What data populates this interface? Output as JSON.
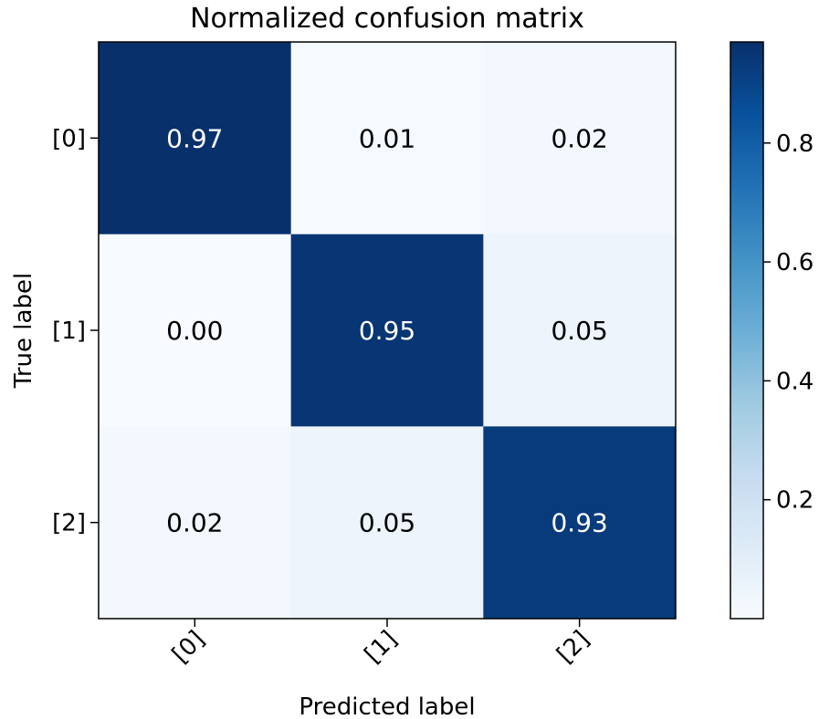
{
  "chart_data": {
    "type": "heatmap",
    "title": "Normalized confusion matrix",
    "xlabel": "Predicted label",
    "ylabel": "True label",
    "x_categories": [
      "[0]",
      "[1]",
      "[2]"
    ],
    "y_categories": [
      "[0]",
      "[1]",
      "[2]"
    ],
    "values": [
      [
        0.97,
        0.01,
        0.02
      ],
      [
        0.0,
        0.95,
        0.05
      ],
      [
        0.02,
        0.05,
        0.93
      ]
    ],
    "cell_labels": [
      [
        "0.97",
        "0.01",
        "0.02"
      ],
      [
        "0.00",
        "0.95",
        "0.05"
      ],
      [
        "0.02",
        "0.05",
        "0.93"
      ]
    ],
    "colorbar": {
      "ticks": [
        0.2,
        0.4,
        0.6,
        0.8
      ],
      "tick_labels": [
        "0.2",
        "0.4",
        "0.6",
        "0.8"
      ],
      "range": [
        0.0,
        0.97
      ]
    },
    "colormap": "Blues",
    "grid": false
  }
}
